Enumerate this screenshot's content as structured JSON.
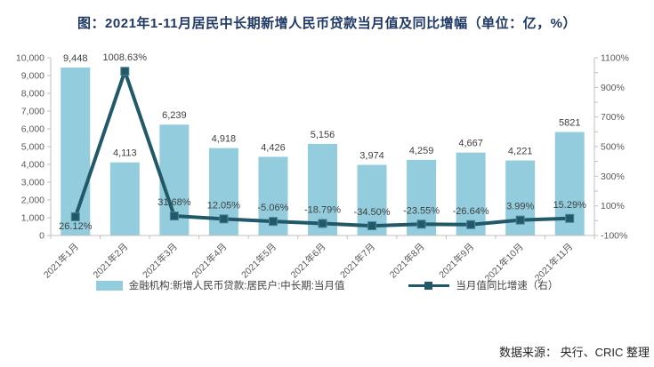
{
  "title": "图：2021年1-11月居民中长期新增人民币贷款当月值及同比增幅（单位：亿，%）",
  "footer": {
    "source_label": "数据来源： 央行、CRIC 整理"
  },
  "colors": {
    "bar": "#93CDDD",
    "line": "#215968",
    "marker_edge": "#4A8496",
    "axis": "#BFBFBF",
    "tick_text": "#595959",
    "label_text": "#3F3F3F"
  },
  "chart_data": {
    "type": "combo",
    "categories": [
      "2021年1月",
      "2021年2月",
      "2021年3月",
      "2021年4月",
      "2021年5月",
      "2021年6月",
      "2021年7月",
      "2021年8月",
      "2021年9月",
      "2021年10月",
      "2021年11月"
    ],
    "series": [
      {
        "name": "金融机构:新增人民币贷款:居民户:中长期:当月值",
        "type": "bar",
        "axis": "left",
        "values": [
          9448,
          4113,
          6239,
          4918,
          4426,
          5156,
          3974,
          4259,
          4667,
          4221,
          5821
        ],
        "labels": [
          "9,448",
          "4,113",
          "6,239",
          "4,918",
          "4,426",
          "5,156",
          "3,974",
          "4,259",
          "4,667",
          "4,221",
          "5821"
        ]
      },
      {
        "name": "当月值同比增速（右）",
        "type": "line",
        "axis": "right",
        "values": [
          26.12,
          1008.63,
          31.68,
          12.05,
          -5.06,
          -18.79,
          -34.5,
          -23.55,
          -26.64,
          3.99,
          15.29
        ],
        "labels": [
          "26.12%",
          "1008.63%",
          "31.68%",
          "12.05%",
          "-5.06%",
          "-18.79%",
          "-34.50%",
          "-23.55%",
          "-26.64%",
          "3.99%",
          "15.29%"
        ]
      }
    ],
    "left_axis": {
      "min": 0,
      "max": 10000,
      "step": 1000,
      "tick_labels": [
        "0",
        "1,000",
        "2,000",
        "3,000",
        "4,000",
        "5,000",
        "6,000",
        "7,000",
        "8,000",
        "9,000",
        "10,000"
      ]
    },
    "right_axis": {
      "min": -100,
      "max": 1100,
      "tick_step": 100,
      "label_step": 200,
      "tick_labels": [
        "-100%",
        "100%",
        "300%",
        "500%",
        "700%",
        "900%",
        "1100%"
      ]
    },
    "grid": false,
    "legend_position": "bottom"
  }
}
